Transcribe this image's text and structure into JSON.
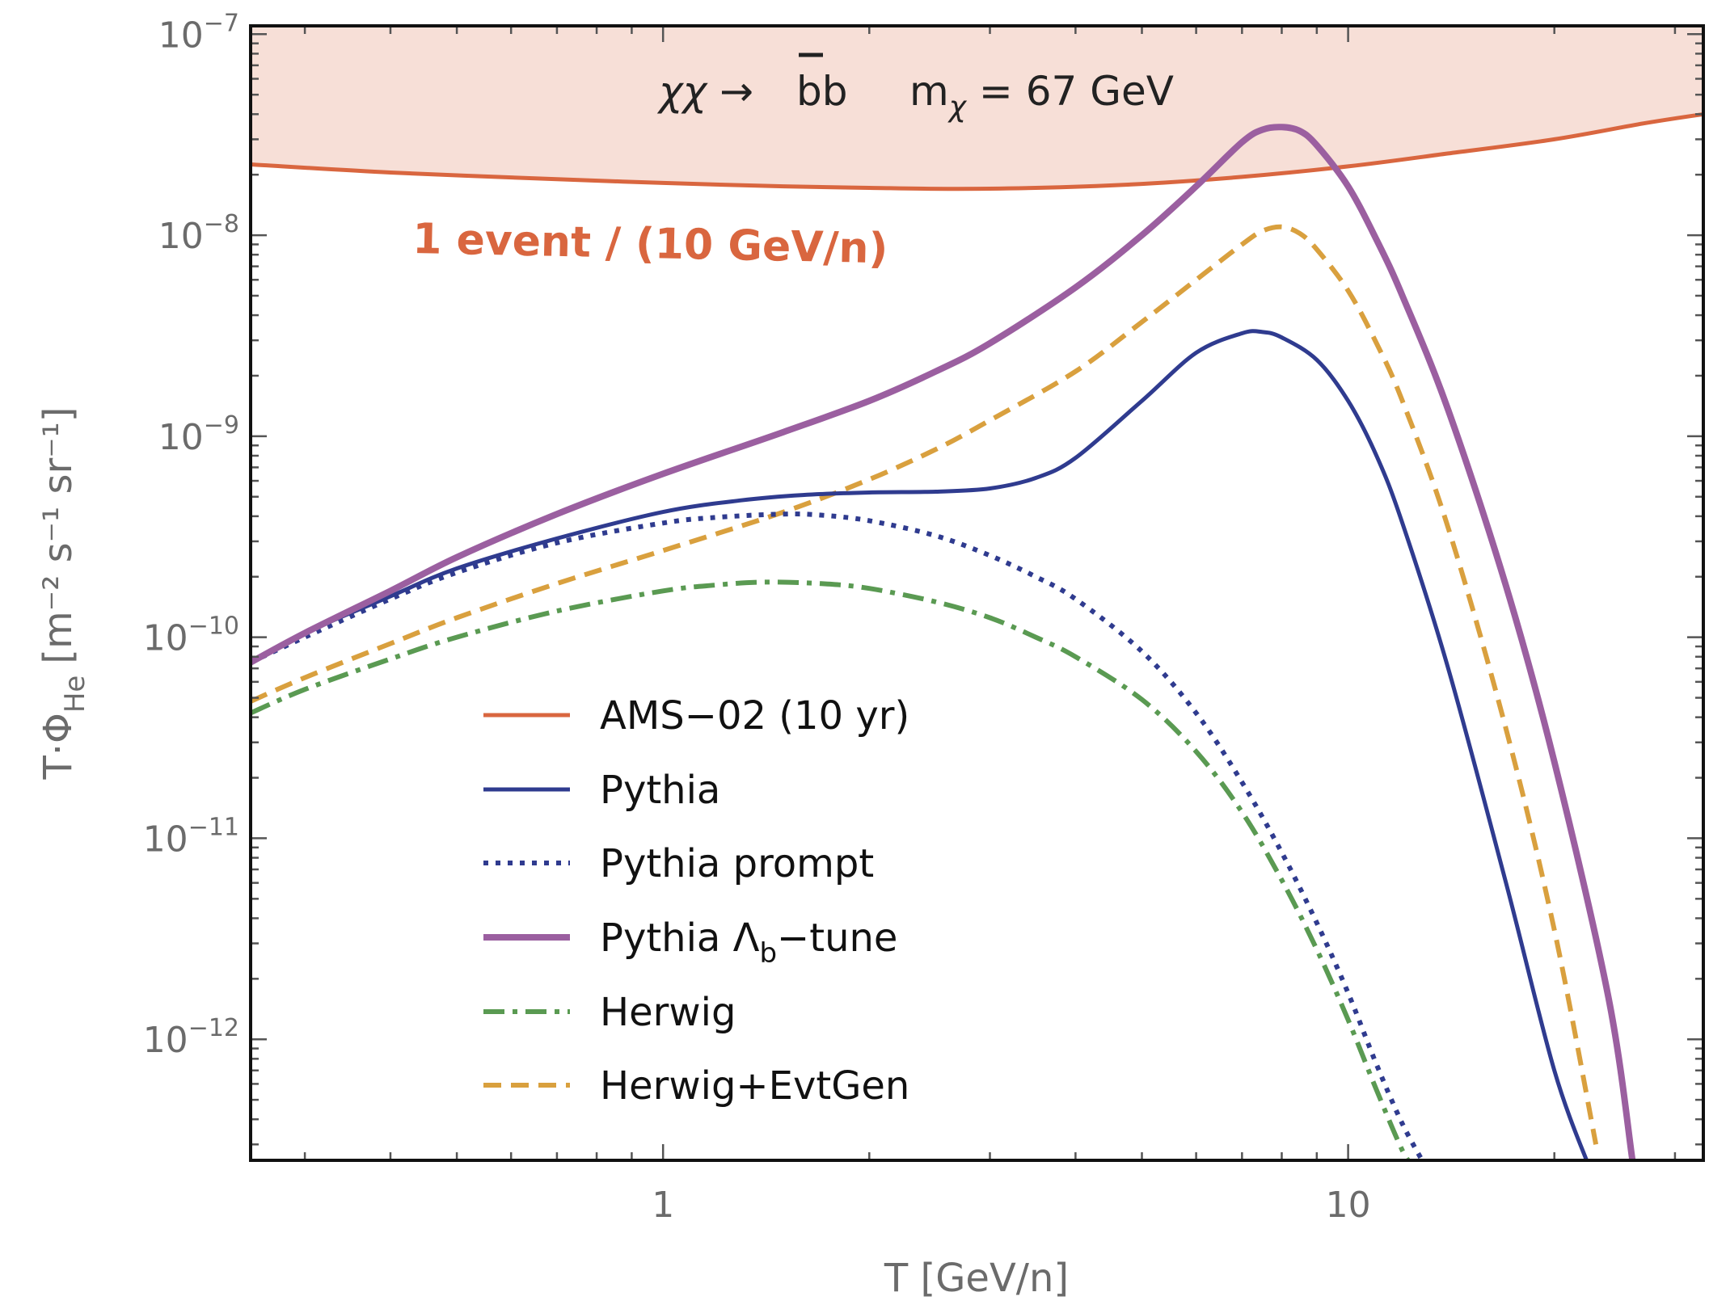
{
  "chart_data": {
    "type": "line",
    "xlabel": "T [GeV/n]",
    "ylabel": {
      "main": "T·Φ",
      "sub": "He",
      "units": "[m⁻² s⁻¹ sr⁻¹]"
    },
    "xscale": "log",
    "yscale": "log",
    "xlim": [
      0.25,
      33
    ],
    "ylim": [
      2.5e-13,
      1.1e-07
    ],
    "x_ticks": [
      {
        "value": 1,
        "label": "1"
      },
      {
        "value": 10,
        "label": "10"
      }
    ],
    "y_ticks": [
      {
        "value": 1e-07,
        "base": "10",
        "exp": "−7"
      },
      {
        "value": 1e-08,
        "base": "10",
        "exp": "−8"
      },
      {
        "value": 1e-09,
        "base": "10",
        "exp": "−9"
      },
      {
        "value": 1e-10,
        "base": "10",
        "exp": "−10"
      },
      {
        "value": 1e-11,
        "base": "10",
        "exp": "−11"
      },
      {
        "value": 1e-12,
        "base": "10",
        "exp": "−12"
      }
    ],
    "annotation": {
      "process": "χχ → bb",
      "process_left": "χχ →",
      "process_right": "bb",
      "mass": "m",
      "mass_sub": "χ",
      "mass_right": " = 67 GeV"
    },
    "sensitivity_label": "1 event / (10 GeV/n)",
    "series": [
      {
        "name": "AMS−02 (10 yr)",
        "color": "#d9663f",
        "style": "solid",
        "width": 5,
        "fill_above": "#f7dfd7",
        "x": [
          0.25,
          0.4,
          0.7,
          1.0,
          1.5,
          2.0,
          2.6,
          3.5,
          5.0,
          7.0,
          10.0,
          14.0,
          20.0,
          27.0,
          33.0
        ],
        "y": [
          2.25e-08,
          2.05e-08,
          1.9e-08,
          1.82e-08,
          1.75e-08,
          1.72e-08,
          1.7e-08,
          1.72e-08,
          1.8e-08,
          1.95e-08,
          2.2e-08,
          2.55e-08,
          3e-08,
          3.6e-08,
          4e-08
        ]
      },
      {
        "name": "Pythia",
        "color": "#2f3b8f",
        "style": "solid",
        "width": 5,
        "x": [
          0.25,
          0.3,
          0.4,
          0.5,
          0.7,
          1.0,
          1.3,
          1.6,
          2.0,
          2.5,
          3.0,
          3.5,
          4.0,
          5.0,
          6.0,
          7.0,
          7.5,
          8.0,
          9.0,
          10.0,
          11.0,
          12.0,
          14.0,
          17.0,
          20.0,
          22.5
        ],
        "y": [
          7.5e-11,
          1.05e-10,
          1.6e-10,
          2.2e-10,
          3.1e-10,
          4.2e-10,
          4.8e-10,
          5.1e-10,
          5.25e-10,
          5.3e-10,
          5.5e-10,
          6.2e-10,
          7.8e-10,
          1.5e-09,
          2.6e-09,
          3.25e-09,
          3.3e-09,
          3.1e-09,
          2.4e-09,
          1.5e-09,
          8e-10,
          3.7e-10,
          7e-11,
          6e-12,
          7e-13,
          2.3e-13
        ]
      },
      {
        "name": "Pythia prompt",
        "color": "#2f3b8f",
        "style": "dotted",
        "width": 6,
        "x": [
          0.25,
          0.3,
          0.4,
          0.5,
          0.7,
          1.0,
          1.2,
          1.5,
          1.7,
          2.0,
          2.5,
          3.0,
          3.5,
          4.0,
          5.0,
          6.0,
          7.0,
          8.0,
          9.0,
          10.0,
          11.0,
          12.0,
          13.0
        ],
        "y": [
          7.5e-11,
          1e-10,
          1.55e-10,
          2.1e-10,
          2.95e-10,
          3.7e-10,
          3.95e-10,
          4.1e-10,
          4.05e-10,
          3.8e-10,
          3.2e-10,
          2.55e-10,
          2e-10,
          1.55e-10,
          8.5e-11,
          4.2e-11,
          1.9e-11,
          8.5e-12,
          3.8e-12,
          1.7e-12,
          7.5e-13,
          3.8e-13,
          2.3e-13
        ]
      },
      {
        "name": "Pythia Λb−tune",
        "label_main": "Pythia Λ",
        "label_sub": "b",
        "label_tail": "−tune",
        "color": "#9b5fa0",
        "style": "solid",
        "width": 8,
        "x": [
          0.25,
          0.3,
          0.4,
          0.5,
          0.7,
          1.0,
          1.5,
          2.0,
          2.5,
          3.0,
          4.0,
          5.0,
          6.0,
          7.0,
          7.5,
          8.0,
          8.5,
          9.0,
          10.0,
          11.0,
          12.0,
          14.0,
          17.0,
          20.0,
          24.0,
          26.0
        ],
        "y": [
          7.5e-11,
          1.05e-10,
          1.7e-10,
          2.5e-10,
          4.1e-10,
          6.5e-10,
          1.05e-09,
          1.5e-09,
          2.1e-09,
          2.9e-09,
          5.5e-09,
          1e-08,
          1.75e-08,
          2.9e-08,
          3.35e-08,
          3.45e-08,
          3.3e-08,
          2.8e-08,
          1.75e-08,
          9.5e-09,
          5e-09,
          1.35e-09,
          1.8e-10,
          2.4e-11,
          1.6e-12,
          2.5e-13
        ]
      },
      {
        "name": "Herwig",
        "color": "#5a9a52",
        "style": "dashdot",
        "width": 6,
        "x": [
          0.25,
          0.3,
          0.4,
          0.5,
          0.7,
          1.0,
          1.2,
          1.4,
          1.7,
          2.0,
          2.5,
          3.0,
          3.5,
          4.0,
          5.0,
          6.0,
          7.0,
          8.0,
          9.0,
          10.0,
          11.0,
          12.0,
          12.5
        ],
        "y": [
          4.2e-11,
          5.5e-11,
          7.8e-11,
          1e-10,
          1.35e-10,
          1.7e-10,
          1.82e-10,
          1.88e-10,
          1.85e-10,
          1.75e-10,
          1.5e-10,
          1.25e-10,
          1e-10,
          8e-11,
          4.9e-11,
          2.7e-11,
          1.35e-11,
          6.2e-12,
          2.8e-12,
          1.25e-12,
          5.6e-13,
          2.8e-13,
          2.3e-13
        ]
      },
      {
        "name": "Herwig+EvtGen",
        "color": "#d9a03e",
        "style": "dashed",
        "width": 6,
        "x": [
          0.25,
          0.3,
          0.4,
          0.5,
          0.7,
          1.0,
          1.5,
          2.0,
          2.5,
          3.0,
          4.0,
          5.0,
          6.0,
          7.0,
          7.5,
          8.0,
          8.5,
          9.0,
          10.0,
          11.0,
          12.0,
          14.0,
          17.0,
          20.0,
          23.0
        ],
        "y": [
          4.8e-11,
          6.3e-11,
          9.3e-11,
          1.25e-10,
          1.85e-10,
          2.7e-10,
          4.2e-10,
          6.1e-10,
          8.6e-10,
          1.2e-09,
          2.1e-09,
          3.7e-09,
          6e-09,
          9e-09,
          1.05e-08,
          1.1e-08,
          1.02e-08,
          8.5e-09,
          5.3e-09,
          2.9e-09,
          1.5e-09,
          3.5e-10,
          3.5e-11,
          3.5e-12,
          3e-13
        ]
      }
    ]
  }
}
